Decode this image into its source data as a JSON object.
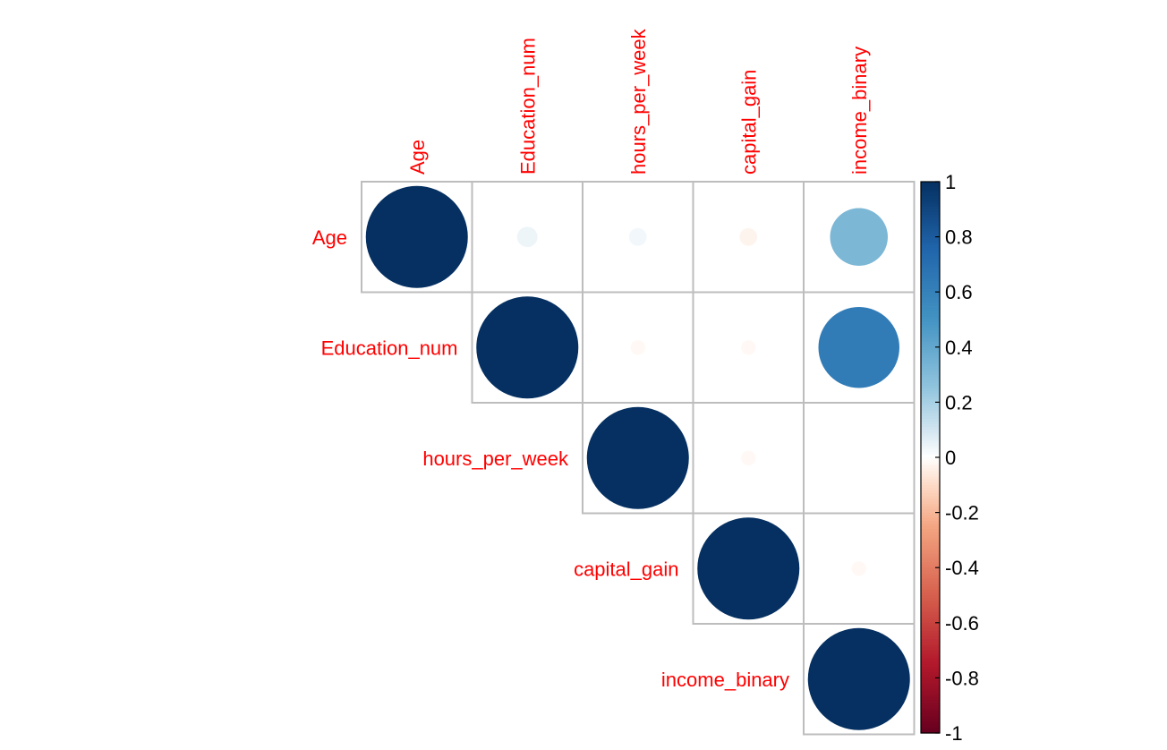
{
  "chart_data": {
    "type": "heatmap",
    "variables": [
      "Age",
      "Education_num",
      "hours_per_week",
      "capital_gain",
      "income_binary"
    ],
    "layout": "upper-triangle",
    "glyph": "circle",
    "matrix": [
      [
        1.0,
        0.04,
        0.03,
        -0.03,
        0.32
      ],
      [
        null,
        1.0,
        -0.02,
        -0.02,
        0.63
      ],
      [
        null,
        null,
        1.0,
        -0.02,
        0.0
      ],
      [
        null,
        null,
        null,
        1.0,
        -0.02
      ],
      [
        null,
        null,
        null,
        null,
        1.0
      ]
    ],
    "colorbar": {
      "range": [
        -1,
        1
      ],
      "ticks": [
        "1",
        "0.8",
        "0.6",
        "0.4",
        "0.2",
        "0",
        "-0.2",
        "-0.4",
        "-0.6",
        "-0.8",
        "-1"
      ],
      "colors": {
        "neg_end": "#67001f",
        "mid": "#ffffff",
        "pos_end": "#053061"
      }
    },
    "label_color": "#ff0000",
    "grid_color": "#bdbdbd"
  }
}
